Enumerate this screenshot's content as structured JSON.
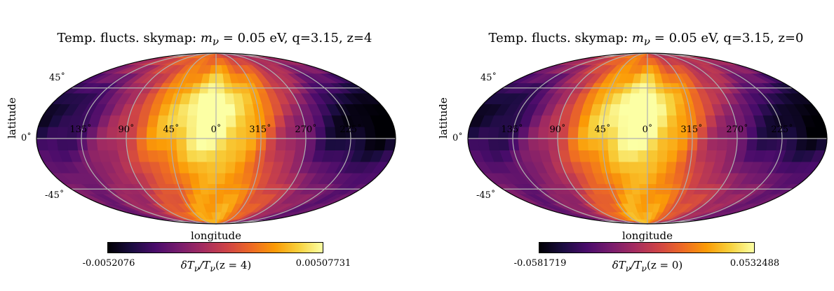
{
  "colormap": [
    "#000004",
    "#1b0c41",
    "#4a0c6b",
    "#781c6d",
    "#a52c60",
    "#cf4446",
    "#ed6925",
    "#fb9b06",
    "#f7d13d",
    "#fcffa4"
  ],
  "panels": [
    {
      "title_prefix": "Temp. flucts. skymap: ",
      "title_math": "m",
      "title_math_sub": "ν",
      "title_suffix": " = 0.05 eV, q=3.15, z=4",
      "ylabel": "latitude",
      "xlabel": "longitude",
      "lat_ticks": [
        "45˚",
        "0˚",
        "-45˚"
      ],
      "lon_ticks": [
        "135˚",
        "90˚",
        "45˚",
        "0˚",
        "315˚",
        "270˚",
        "225˚"
      ],
      "cbar_min": "-0.0052076",
      "cbar_max": "0.00507731",
      "cbar_label_main": "δT",
      "cbar_label_rest": "/T",
      "cbar_label_z": "(z = 4)"
    },
    {
      "title_prefix": "Temp. flucts. skymap: ",
      "title_math": "m",
      "title_math_sub": "ν",
      "title_suffix": " = 0.05 eV, q=3.15, z=0",
      "ylabel": "latitude",
      "xlabel": "longitude",
      "lat_ticks": [
        "45˚",
        "0˚",
        "-45˚"
      ],
      "lon_ticks": [
        "135˚",
        "90˚",
        "45˚",
        "0˚",
        "315˚",
        "270˚",
        "225˚"
      ],
      "cbar_min": "-0.0581719",
      "cbar_max": "0.0532488",
      "cbar_label_main": "δT",
      "cbar_label_rest": "/T",
      "cbar_label_z": "(z = 0)"
    }
  ]
}
